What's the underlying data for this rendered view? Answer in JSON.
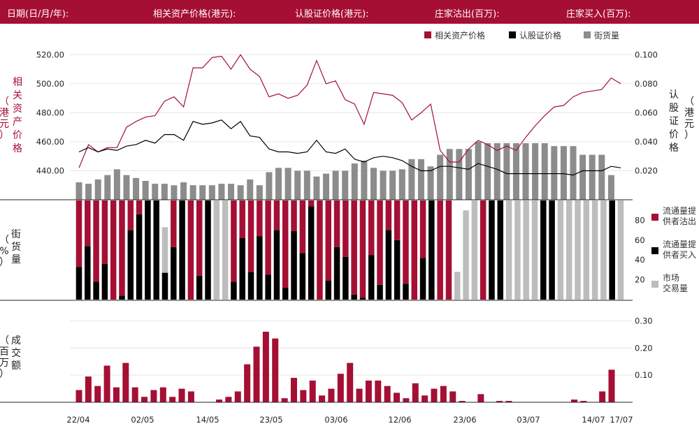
{
  "header": {
    "items": [
      {
        "label": "日期(日/月/年):",
        "color": "#ffffff"
      },
      {
        "label": "相关资产价格(港元):",
        "color": "#ffffff"
      },
      {
        "label": "认股证价格(港元):",
        "color": "#ffffff"
      },
      {
        "label": "庄家沽出(百万):",
        "color": "#ffffff"
      },
      {
        "label": "庄家买入(百万):",
        "color": "#ffffff"
      }
    ]
  },
  "colors": {
    "accent": "#a50f34",
    "warrant": "#000000",
    "outstanding": "#8c8c8c",
    "market": "#bdbdbd"
  },
  "chart_data": [
    {
      "type": "line",
      "title": "",
      "legend": [
        "相关资产价格",
        "认股证价格",
        "街货量"
      ],
      "legend_position": "top-right",
      "ylabel_left": "相关资产价格（港元）",
      "ylabel_right": "认股证价格（港元）",
      "yticks_left": [
        "440.00",
        "460.00",
        "480.00",
        "500.00",
        "520.00"
      ],
      "yticks_right": [
        "0.020",
        "0.040",
        "0.060",
        "0.080",
        "0.100"
      ],
      "ylim_left": [
        420,
        525
      ],
      "ylim_right": [
        0,
        0.105
      ],
      "series": [
        {
          "name": "相关资产价格",
          "axis": "left",
          "values": [
            442,
            458,
            453,
            456,
            456,
            470,
            474,
            477,
            478,
            488,
            491,
            484,
            511,
            511,
            518,
            519,
            510,
            520,
            510,
            505,
            491,
            493,
            490,
            492,
            499,
            516,
            500,
            502,
            489,
            486,
            472,
            494,
            493,
            492,
            487,
            475,
            480,
            486,
            454,
            446,
            446,
            455,
            461,
            458,
            454,
            457,
            454,
            463,
            471,
            478,
            484,
            485,
            491,
            494,
            495,
            496,
            504,
            500
          ]
        },
        {
          "name": "认股证价格",
          "axis": "left",
          "values": [
            453,
            456,
            453,
            455,
            454,
            457,
            458,
            461,
            459,
            465,
            465,
            461,
            474,
            472,
            473,
            475,
            469,
            474,
            464,
            463,
            455,
            453,
            453,
            452,
            453,
            461,
            453,
            452,
            455,
            448,
            446,
            449,
            450,
            449,
            447,
            443,
            440,
            440,
            443,
            443,
            442,
            441,
            445,
            443,
            441,
            438,
            438,
            438,
            438,
            438,
            438,
            438,
            437,
            440,
            440,
            440,
            443,
            442
          ]
        },
        {
          "name": "街货量",
          "axis": "bar",
          "values": [
            432,
            431,
            434,
            437,
            441,
            437,
            435,
            433,
            431,
            431,
            430,
            432,
            430,
            430,
            430,
            431,
            431,
            430,
            434,
            430,
            439,
            442,
            442,
            440,
            440,
            436,
            438,
            440,
            440,
            445,
            447,
            442,
            440,
            440,
            441,
            448,
            448,
            443,
            451,
            455,
            455,
            455,
            460,
            459,
            459,
            459,
            459,
            459,
            459,
            459,
            457,
            457,
            457,
            451,
            451,
            451,
            437,
            420
          ]
        }
      ]
    },
    {
      "type": "bar",
      "title": "",
      "ylabel": "街货量（%）",
      "legend": [
        "流通量提供者沽出",
        "流通量提供者买入",
        "市场交易量"
      ],
      "legend_position": "right",
      "yticks": [
        "20",
        "40",
        "60",
        "80"
      ],
      "ylim": [
        0,
        100
      ],
      "series": [
        {
          "name": "流通量提供者买入",
          "values": [
            33,
            54,
            18,
            36,
            0,
            4,
            70,
            86,
            100,
            100,
            27,
            53,
            100,
            0,
            24,
            100,
            0,
            0,
            18,
            62,
            28,
            64,
            25,
            70,
            12,
            69,
            47,
            94,
            0,
            19,
            53,
            43,
            5,
            2,
            45,
            15,
            70,
            60,
            16,
            0,
            42,
            100,
            0,
            0,
            0,
            0,
            0,
            0,
            100,
            100,
            0,
            0,
            0,
            0,
            100,
            100,
            0,
            0,
            0,
            0,
            0,
            0,
            100,
            0
          ]
        },
        {
          "name": "流通量提供者沽出",
          "values": [
            67,
            46,
            82,
            64,
            100,
            96,
            30,
            14,
            0,
            0,
            0,
            47,
            0,
            100,
            76,
            0,
            0,
            0,
            82,
            38,
            72,
            36,
            75,
            30,
            88,
            31,
            53,
            6,
            100,
            81,
            47,
            57,
            95,
            98,
            55,
            85,
            30,
            40,
            84,
            100,
            58,
            0,
            100,
            100,
            0,
            0,
            0,
            100,
            0,
            0,
            0,
            0,
            0,
            0,
            0,
            0,
            0,
            0,
            0,
            0,
            0,
            0,
            0,
            0
          ]
        },
        {
          "name": "市场交易量",
          "values": [
            0,
            0,
            0,
            0,
            0,
            0,
            0,
            0,
            0,
            0,
            73,
            0,
            0,
            0,
            0,
            0,
            100,
            100,
            0,
            0,
            0,
            0,
            0,
            0,
            0,
            0,
            0,
            0,
            0,
            0,
            0,
            0,
            0,
            0,
            0,
            0,
            0,
            0,
            0,
            0,
            0,
            0,
            0,
            0,
            28,
            90,
            100,
            0,
            0,
            0,
            100,
            100,
            100,
            100,
            0,
            0,
            100,
            100,
            100,
            100,
            100,
            100,
            0,
            100
          ]
        }
      ]
    },
    {
      "type": "bar",
      "title": "",
      "ylabel": "成交额（百万）",
      "yticks": [
        "0.10",
        "0.20",
        "0.30"
      ],
      "ylim": [
        0,
        0.35
      ],
      "xticks": [
        "22/04",
        "02/05",
        "14/05",
        "23/05",
        "03/06",
        "12/06",
        "23/06",
        "03/07",
        "14/07",
        "17/07"
      ],
      "series": [
        {
          "name": "成交额",
          "values": [
            0.045,
            0.095,
            0.06,
            0.135,
            0.055,
            0.145,
            0.055,
            0.02,
            0.045,
            0.055,
            0.02,
            0.05,
            0.04,
            0,
            0,
            0.01,
            0.02,
            0.04,
            0.14,
            0.205,
            0.26,
            0.235,
            0.015,
            0.09,
            0.045,
            0.08,
            0.025,
            0.05,
            0.105,
            0.145,
            0.05,
            0.08,
            0.08,
            0.06,
            0.035,
            0.015,
            0.07,
            0.025,
            0.05,
            0.06,
            0.04,
            0.005,
            0,
            0.03,
            0,
            0.005,
            0.005,
            0,
            0,
            0,
            0,
            0,
            0,
            0.01,
            0.005,
            0,
            0.04,
            0.12
          ]
        }
      ]
    }
  ]
}
